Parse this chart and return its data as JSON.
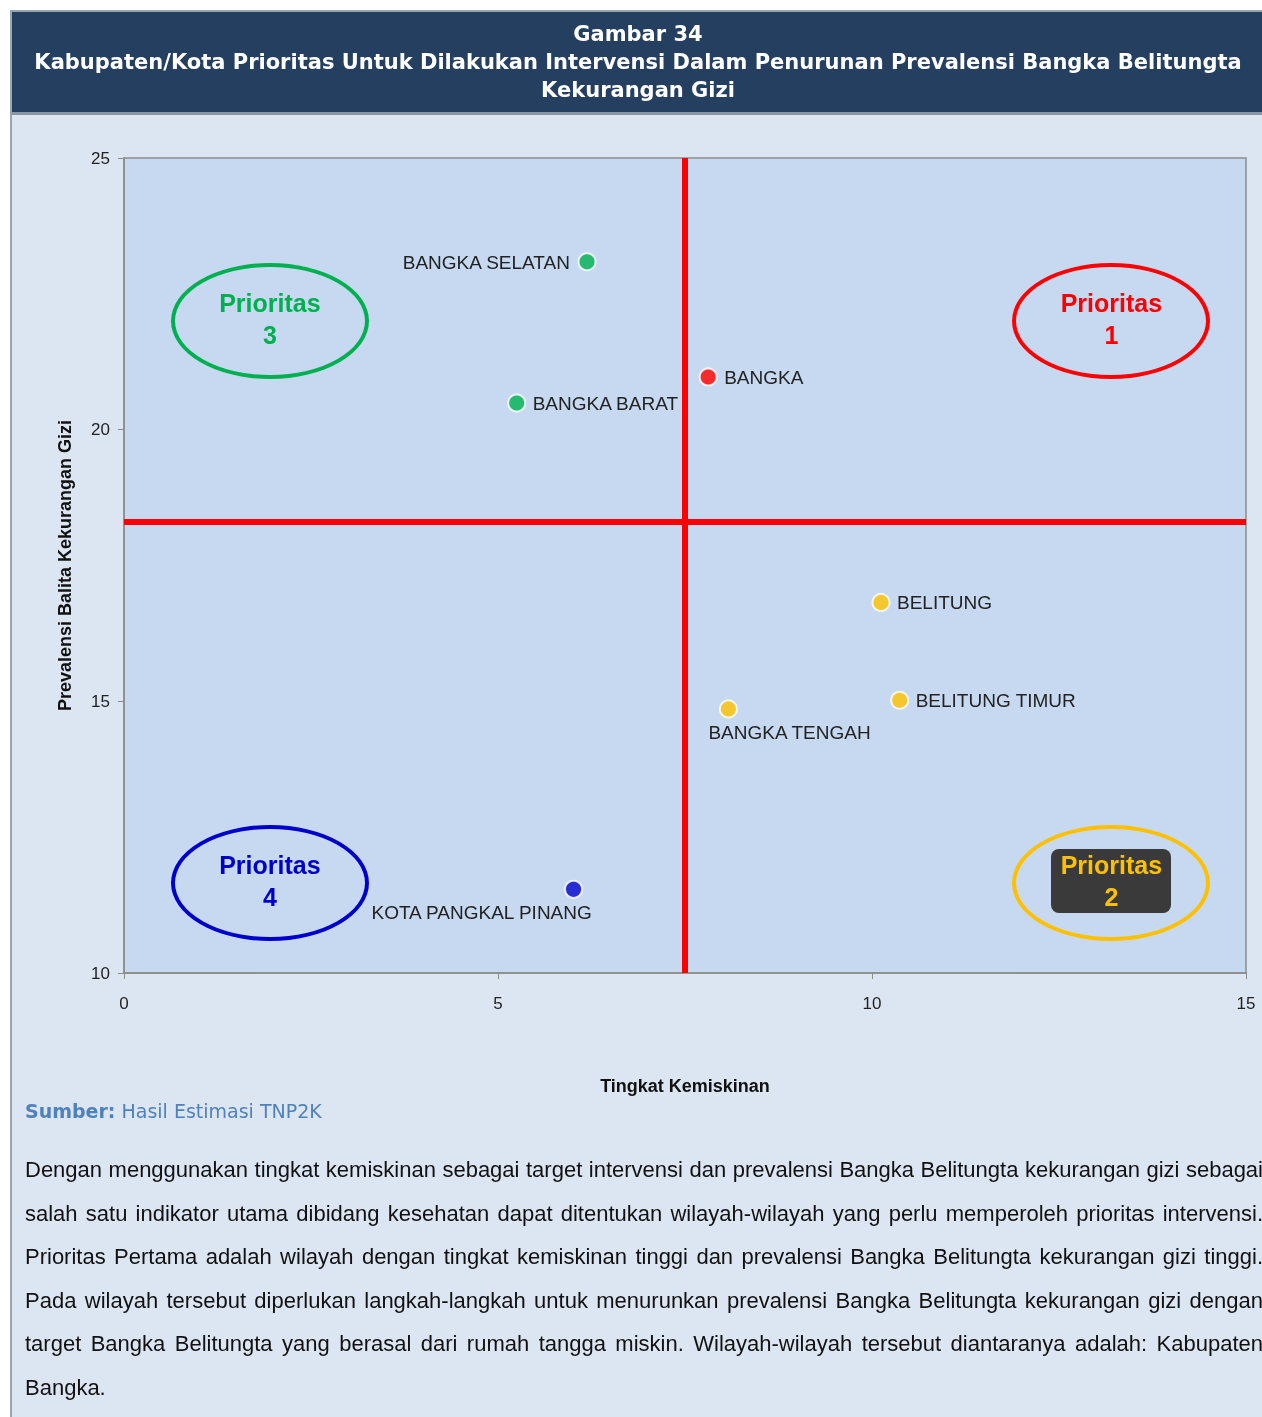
{
  "chart_data": {
    "type": "scatter",
    "title": "Gambar 34",
    "subtitle": "Kabupaten/Kota Prioritas Untuk Dilakukan Intervensi Dalam Penurunan Prevalensi  Bangka Belitungta Kekurangan Gizi",
    "xlabel": "Tingkat Kemiskinan",
    "ylabel": "Prevalensi Balita Kekurangan Gizi",
    "xlim": [
      0,
      15
    ],
    "xticks": [
      0,
      5,
      10,
      15
    ],
    "ylim": [
      10,
      25
    ],
    "yticks": [
      10,
      15,
      20,
      25
    ],
    "grid": false,
    "marker": "circle",
    "series": [
      {
        "name": "Prioritas 1",
        "color": "#ff0000",
        "x": [
          7.81
        ],
        "values": [
          20.97
        ]
      },
      {
        "name": "Prioritas 2",
        "color": "#ffc000",
        "x": [
          10.12,
          10.37,
          8.08
        ],
        "values": [
          16.82,
          15.02,
          14.86
        ]
      },
      {
        "name": "Prioritas 3",
        "color": "#00b050",
        "x": [
          6.19,
          5.25
        ],
        "values": [
          23.09,
          20.49
        ]
      },
      {
        "name": "Prioritas 4",
        "color": "#0000cc",
        "x": [
          6.01
        ],
        "values": [
          11.54
        ]
      }
    ],
    "ref_lines": [
      {
        "axis": "x",
        "value": 7.5,
        "color": "#ff0000"
      },
      {
        "axis": "y",
        "value": 18.3,
        "color": "#ff0000"
      }
    ],
    "annotations": [
      {
        "text": "BANGKA",
        "x": 7.81,
        "y": 20.97
      },
      {
        "text": "BELITUNG",
        "x": 10.12,
        "y": 16.82
      },
      {
        "text": "BELITUNG TIMUR",
        "x": 10.37,
        "y": 15.02
      },
      {
        "text": "BANGKA TENGAH",
        "x": 8.08,
        "y": 14.86
      },
      {
        "text": "BANGKA SELATAN",
        "x": 6.19,
        "y": 23.09
      },
      {
        "text": "BANGKA BARAT",
        "x": 5.25,
        "y": 20.49
      },
      {
        "text": "KOTA PANGKAL PINANG",
        "x": 6.01,
        "y": 11.54
      },
      "Sumber: Hasil Estimasi TNP2K",
      "Dengan menggunakan tingkat kemiskinan sebagai target intervensi dan prevalensi  Bangka Belitungta kekurangan gizi sebagai salah satu indikator utama dibidang kesehatan dapat ditentukan wilayah-wilayah yang perlu memperoleh prioritas intervensi. Prioritas Pertama adalah wilayah dengan tingkat kemiskinan tinggi dan prevalensi  Bangka Belitungta kekurangan gizi tinggi. Pada wilayah tersebut diperlukan langkah-langkah untuk menurunkan prevalensi  Bangka Belitungta kekurangan gizi dengan target  Bangka Belitungta yang berasal dari rumah tangga miskin. Wilayah-wilayah tersebut diantaranya adalah: Kabupaten Bangka."
    ]
  }
}
